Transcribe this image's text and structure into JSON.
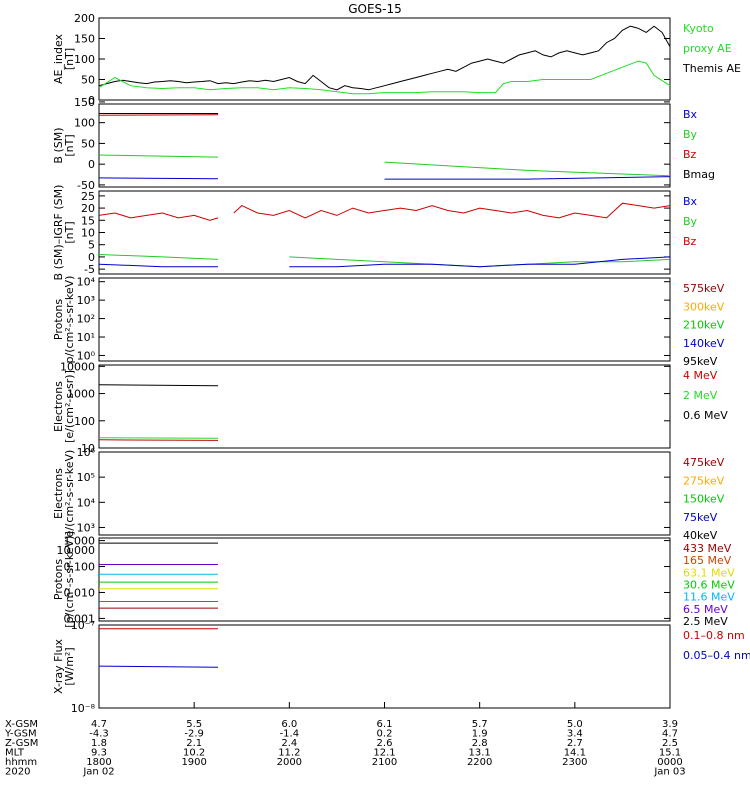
{
  "title": "GOES-15",
  "chart_data": [
    {
      "id": "ae",
      "type": "line",
      "ylabel": [
        "AE_index",
        "[nT]"
      ],
      "ylim": [
        0,
        200
      ],
      "yticks": [
        "200",
        "150",
        "100",
        "50",
        "0"
      ],
      "legend": [
        {
          "text": "Kyoto",
          "color": "#22dd22"
        },
        {
          "text": "proxy AE",
          "color": "#22dd22"
        },
        {
          "text": "Themis AE",
          "color": "#000000"
        }
      ],
      "series": [
        {
          "color": "#000000",
          "x": [
            0,
            5,
            10,
            15,
            20,
            25,
            30,
            35,
            40,
            45,
            50,
            55,
            60,
            65,
            70,
            75,
            80,
            85,
            90,
            95,
            100,
            105,
            110,
            115,
            120,
            125,
            130,
            135,
            140,
            145,
            150,
            155,
            160,
            165,
            170,
            175,
            180,
            185,
            190,
            195,
            200,
            205,
            210,
            215,
            220,
            225,
            230,
            235,
            240,
            245,
            250,
            255,
            260,
            265,
            270,
            275,
            280,
            285,
            290,
            295,
            300,
            305,
            310,
            315,
            320,
            325,
            330,
            335,
            340,
            345,
            350,
            355,
            360
          ],
          "y": [
            35,
            40,
            45,
            48,
            45,
            42,
            40,
            44,
            45,
            47,
            45,
            42,
            44,
            45,
            47,
            40,
            42,
            40,
            44,
            47,
            45,
            48,
            45,
            50,
            55,
            45,
            40,
            60,
            45,
            30,
            25,
            35,
            30,
            28,
            25,
            30,
            35,
            40,
            45,
            50,
            55,
            60,
            65,
            70,
            75,
            70,
            80,
            90,
            95,
            100,
            95,
            90,
            100,
            110,
            115,
            120,
            110,
            105,
            115,
            120,
            115,
            110,
            115,
            120,
            140,
            150,
            170,
            180,
            175,
            165,
            180,
            165,
            130
          ]
        },
        {
          "color": "#22dd22",
          "x": [
            0,
            10,
            20,
            30,
            40,
            50,
            60,
            70,
            80,
            90,
            100,
            110,
            120,
            130,
            140,
            150,
            160,
            170,
            180,
            190,
            200,
            210,
            220,
            230,
            240,
            250,
            255,
            260,
            270,
            280,
            290,
            300,
            310,
            320,
            330,
            340,
            345,
            350,
            360
          ],
          "y": [
            30,
            55,
            35,
            30,
            28,
            30,
            30,
            25,
            28,
            30,
            30,
            25,
            30,
            28,
            25,
            20,
            15,
            15,
            18,
            18,
            18,
            20,
            20,
            20,
            18,
            18,
            40,
            45,
            45,
            50,
            50,
            50,
            50,
            65,
            80,
            95,
            90,
            60,
            35
          ]
        }
      ]
    },
    {
      "id": "bsm",
      "type": "line",
      "ylabel": [
        "B (SM)",
        "[nT]"
      ],
      "ylim": [
        -55,
        145
      ],
      "yticks": [
        "150",
        "100",
        "50",
        "0",
        "-50"
      ],
      "legend": [
        {
          "text": "Bx",
          "color": "#0000cc"
        },
        {
          "text": "By",
          "color": "#22cc22"
        },
        {
          "text": "Bz",
          "color": "#cc0000"
        },
        {
          "text": "Bmag",
          "color": "#000000"
        }
      ],
      "series": [
        {
          "color": "#cc0000",
          "x": [
            0,
            75,
            77,
            360
          ],
          "y": [
            118,
            119,
            null,
            119
          ]
        },
        {
          "color": "#000000",
          "x": [
            0,
            75,
            77,
            360
          ],
          "y": [
            122,
            122,
            null,
            124
          ]
        },
        {
          "color": "#22cc22",
          "x": [
            0,
            75,
            77,
            180,
            270,
            360
          ],
          "y": [
            22,
            17,
            null,
            5,
            -15,
            -28
          ]
        },
        {
          "color": "#0000cc",
          "x": [
            0,
            75,
            77,
            180,
            270,
            360
          ],
          "y": [
            -33,
            -35,
            null,
            -36,
            -36,
            -30
          ]
        }
      ]
    },
    {
      "id": "bigrf",
      "type": "line",
      "ylabel": [
        "B (SM)–IGRF (SM)",
        "[nT]"
      ],
      "ylim": [
        -7,
        27
      ],
      "yticks": [
        "25",
        "20",
        "15",
        "10",
        "5",
        "0",
        "-5"
      ],
      "legend": [
        {
          "text": "Bx",
          "color": "#0000cc"
        },
        {
          "text": "By",
          "color": "#22cc22"
        },
        {
          "text": "Bz",
          "color": "#cc0000"
        }
      ],
      "series": [
        {
          "color": "#cc0000",
          "x": [
            0,
            10,
            20,
            30,
            40,
            50,
            60,
            70,
            75,
            77,
            85,
            90,
            100,
            110,
            120,
            130,
            140,
            150,
            160,
            170,
            180,
            190,
            200,
            210,
            220,
            230,
            240,
            250,
            260,
            270,
            280,
            290,
            300,
            310,
            320,
            330,
            340,
            350,
            360
          ],
          "y": [
            17,
            18,
            16,
            17,
            18,
            16,
            17,
            15,
            16,
            null,
            18,
            21,
            18,
            17,
            19,
            16,
            19,
            17,
            20,
            18,
            19,
            20,
            19,
            21,
            19,
            18,
            20,
            19,
            18,
            19,
            17,
            16,
            18,
            17,
            16,
            22,
            21,
            20,
            21
          ]
        },
        {
          "color": "#22cc22",
          "x": [
            0,
            40,
            75,
            77,
            120,
            150,
            180,
            210,
            240,
            270,
            300,
            330,
            360
          ],
          "y": [
            1,
            0,
            -1,
            null,
            0,
            -1,
            -2,
            -3,
            -4,
            -3,
            -2,
            -2,
            -1
          ]
        },
        {
          "color": "#0000cc",
          "x": [
            0,
            40,
            75,
            77,
            120,
            150,
            180,
            210,
            240,
            270,
            300,
            330,
            360
          ],
          "y": [
            -3,
            -4,
            -4,
            null,
            -4,
            -4,
            -3,
            -3,
            -4,
            -3,
            -3,
            -1,
            0
          ]
        }
      ]
    },
    {
      "id": "protons_low",
      "type": "line",
      "ylabel": [
        "Protons",
        "p/(cm²-s-sr-keV)"
      ],
      "ylim_log10": [
        -0.3,
        4.2
      ],
      "yticks": [
        "10⁴",
        "10³",
        "10²",
        "10¹",
        "10⁰"
      ],
      "legend": [
        {
          "text": "575keV",
          "color": "#990000"
        },
        {
          "text": "300keV",
          "color": "#ffaa00"
        },
        {
          "text": "210keV",
          "color": "#00cc00"
        },
        {
          "text": "140keV",
          "color": "#0000cc"
        },
        {
          "text": "95keV",
          "color": "#000000"
        }
      ],
      "series": []
    },
    {
      "id": "electrons_mev",
      "type": "line",
      "ylabel": [
        "Electrons",
        "[e/(cm²-s-sr)]"
      ],
      "ylim_log10": [
        1.0,
        4.05
      ],
      "yticks": [
        "10000",
        "1000",
        "100",
        "10"
      ],
      "legend": [
        {
          "text": "4 MeV",
          "color": "#cc0000"
        },
        {
          "text": "2 MeV",
          "color": "#22dd22"
        },
        {
          "text": "0.6 MeV",
          "color": "#000000"
        }
      ],
      "series": [
        {
          "color": "#000000",
          "x": [
            0,
            75,
            77,
            360
          ],
          "y": [
            2100,
            1950,
            null,
            2000
          ]
        },
        {
          "color": "#22dd22",
          "x": [
            0,
            75,
            77,
            360
          ],
          "y": [
            24,
            23,
            null,
            28
          ]
        },
        {
          "color": "#cc0000",
          "x": [
            0,
            75,
            77,
            360
          ],
          "y": [
            20,
            19,
            null,
            20
          ]
        }
      ]
    },
    {
      "id": "electrons_kev",
      "type": "line",
      "ylabel": [
        "Electrons",
        "e/(cm²-s-sr-keV)"
      ],
      "ylim_log10": [
        2.7,
        6.0
      ],
      "yticks": [
        "10⁶",
        "10⁵",
        "10⁴",
        "10³"
      ],
      "legend": [
        {
          "text": "475keV",
          "color": "#990000"
        },
        {
          "text": "275keV",
          "color": "#ffaa00"
        },
        {
          "text": "150keV",
          "color": "#00cc00"
        },
        {
          "text": "75keV",
          "color": "#0000cc"
        },
        {
          "text": "40keV",
          "color": "#000000"
        }
      ],
      "series": []
    },
    {
      "id": "protons_mev",
      "type": "line",
      "ylabel": [
        "Protons",
        "[p/(cm²-s-sr-keV)]"
      ],
      "ylim_log10": [
        -3.1,
        0.1
      ],
      "yticks": [
        "1.000",
        "0.100",
        "0.010",
        "0.001"
      ],
      "legend": [
        {
          "text": "433 MeV",
          "color": "#990000"
        },
        {
          "text": "165 MeV",
          "color": "#cc4400"
        },
        {
          "text": "63.1 MeV",
          "color": "#dddd00"
        },
        {
          "text": "30.6 MeV",
          "color": "#00cc00"
        },
        {
          "text": "11.6 MeV",
          "color": "#00bbee"
        },
        {
          "text": "6.5 MeV",
          "color": "#6600cc"
        },
        {
          "text": "2.5 MeV",
          "color": "#000000"
        }
      ],
      "top_value_label": "10.000",
      "series": [
        {
          "color": "#000000",
          "x": [
            0,
            75,
            77,
            360
          ],
          "y": [
            0.8,
            0.8,
            null,
            0.85
          ]
        },
        {
          "color": "#6600cc",
          "x": [
            0,
            75,
            77,
            360
          ],
          "y": [
            0.12,
            0.12,
            null,
            0.12
          ]
        },
        {
          "color": "#00bbee",
          "x": [
            0,
            75,
            77,
            360
          ],
          "y": [
            0.05,
            0.05,
            null,
            0.05
          ]
        },
        {
          "color": "#00cc00",
          "x": [
            0,
            75,
            77,
            360
          ],
          "y": [
            0.025,
            0.025,
            null,
            0.025
          ]
        },
        {
          "color": "#dddd00",
          "x": [
            0,
            75,
            77,
            360
          ],
          "y": [
            0.014,
            0.014,
            null,
            0.014
          ]
        },
        {
          "color": "#cc4400",
          "x": [
            0,
            75,
            77,
            360
          ],
          "y": [
            0.0045,
            0.0045,
            null,
            0.0045
          ]
        },
        {
          "color": "#990000",
          "x": [
            0,
            75,
            77,
            360
          ],
          "y": [
            0.0025,
            0.0025,
            null,
            0.0025
          ]
        }
      ]
    },
    {
      "id": "xray",
      "type": "line",
      "ylabel": [
        "X-ray Flux",
        "[W/m²]"
      ],
      "ylim_log10": [
        -8,
        -7
      ],
      "yticks": [
        "10⁻⁷",
        "10⁻⁸"
      ],
      "legend": [
        {
          "text": "0.1–0.8 nm",
          "color": "#cc0000"
        },
        {
          "text": "0.05–0.4 nm",
          "color": "#0000cc"
        }
      ],
      "series": [
        {
          "color": "#cc0000",
          "x": [
            0,
            75,
            77,
            360
          ],
          "y": [
            9e-08,
            9e-08,
            null,
            9.2e-08
          ]
        },
        {
          "color": "#0000cc",
          "x": [
            0,
            75,
            77,
            360
          ],
          "y": [
            3.2e-08,
            3.1e-08,
            null,
            3.1e-08
          ]
        }
      ]
    }
  ],
  "time_axis": {
    "rows": [
      {
        "label": "X-GSM",
        "values": [
          "4.7",
          "5.5",
          "6.0",
          "6.1",
          "5.7",
          "5.0",
          "3.9"
        ]
      },
      {
        "label": "Y-GSM",
        "values": [
          "-4.3",
          "-2.9",
          "-1.4",
          "0.2",
          "1.9",
          "3.4",
          "4.7"
        ]
      },
      {
        "label": "Z-GSM",
        "values": [
          "1.8",
          "2.1",
          "2.4",
          "2.6",
          "2.8",
          "2.7",
          "2.5"
        ]
      },
      {
        "label": "MLT",
        "values": [
          "9.3",
          "10.2",
          "11.2",
          "12.1",
          "13.1",
          "14.1",
          "15.1"
        ]
      },
      {
        "label": "hhmm",
        "values": [
          "1800",
          "1900",
          "2000",
          "2100",
          "2200",
          "2300",
          "0000"
        ]
      },
      {
        "label": "2020",
        "values": [
          "Jan 02",
          "",
          "",
          "",
          "",
          "",
          "Jan 03"
        ]
      }
    ],
    "tick_minutes": [
      0,
      60,
      120,
      180,
      240,
      300,
      360
    ]
  }
}
